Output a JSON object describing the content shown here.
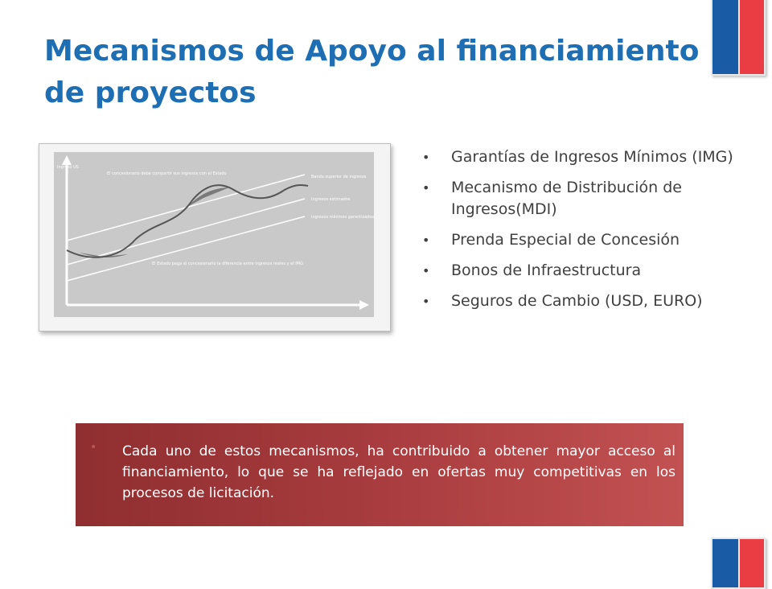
{
  "slide": {
    "title": "Mecanismos de Apoyo al financiamiento de proyectos",
    "bullets": [
      "Garantías de Ingresos Mínimos (IMG)",
      "Mecanismo de Distribución de Ingresos(MDI)",
      "Prenda Especial de Concesión",
      "Bonos de Infraestructura",
      "Seguros de Cambio (USD, EURO)"
    ],
    "callout": "Cada uno de estos mecanismos, ha contribuido a obtener mayor acceso al financiamiento, lo que se ha reflejado en ofertas muy competitivas en los procesos de licitación.",
    "bullet_glyph": "•"
  },
  "figure": {
    "y_axis_label": "Ingreso US",
    "annotation_top": "El concesionario debe compartir sus ingresos con el Estado",
    "annotation_bottom": "El Estado paga al concesionario la diferencia entre ingresos reales y el IMG",
    "line_labels": [
      "Banda superior de ingresos",
      "Ingresos estimados",
      "Ingresos mínimos garantizados"
    ]
  },
  "colors": {
    "title": "#1e6eb4",
    "flag_blue": "#1a5ba6",
    "flag_red": "#ea3c43",
    "callout_start": "#8f2e30",
    "callout_end": "#c25152"
  }
}
